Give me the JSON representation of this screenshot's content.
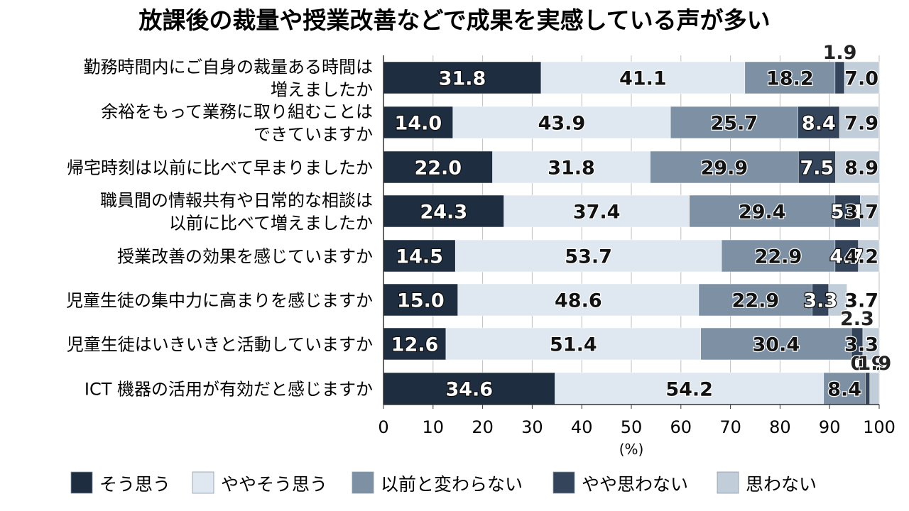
{
  "chart_data": {
    "type": "stacked-bar-horizontal",
    "title": "放課後の裁量や授業改善などで成果を実感している声が多い",
    "unit_label": "(%)",
    "xlim": [
      0,
      100
    ],
    "xticks": [
      "0",
      "10",
      "20",
      "30",
      "40",
      "50",
      "60",
      "70",
      "80",
      "90",
      "100"
    ],
    "categories": [
      [
        "勤務時間内にご自身の裁量ある時間は",
        "増えましたか"
      ],
      [
        "余裕をもって業務に取り組むことは",
        "できていますか"
      ],
      [
        "帰宅時刻は以前に比べて早まりましたか"
      ],
      [
        "職員間の情報共有や日常的な相談は",
        "以前に比べて増えましたか"
      ],
      [
        "授業改善の効果を感じていますか"
      ],
      [
        "児童生徒の集中力に高まりを感じますか"
      ],
      [
        "児童生徒はいきいきと活動していますか"
      ],
      [
        "ICT 機器の活用が有効だと感じますか"
      ]
    ],
    "series": [
      {
        "name": "そう思う",
        "color": "#1f2d40",
        "values": [
          31.8,
          14.0,
          22.0,
          24.3,
          14.5,
          15.0,
          12.6,
          34.6
        ]
      },
      {
        "name": "ややそう思う",
        "color": "#dfe8f1",
        "values": [
          41.1,
          43.9,
          31.8,
          37.4,
          53.7,
          48.6,
          51.4,
          54.2
        ]
      },
      {
        "name": "以前と変わらない",
        "color": "#7d90a4",
        "values": [
          18.2,
          25.7,
          29.9,
          29.4,
          22.9,
          22.9,
          30.4,
          8.4
        ]
      },
      {
        "name": "やや思わない",
        "color": "#33445b",
        "values": [
          1.9,
          8.4,
          7.5,
          5.1,
          4.7,
          3.3,
          2.3,
          0.9
        ]
      },
      {
        "name": "思わない",
        "color": "#c1cdd9",
        "values": [
          7.0,
          7.9,
          8.9,
          3.7,
          4.2,
          3.7,
          3.3,
          1.9
        ]
      }
    ],
    "value_labels": [
      [
        "31.8",
        "41.1",
        "18.2",
        "1.9",
        "7.0"
      ],
      [
        "14.0",
        "43.9",
        "25.7",
        "8.4",
        "7.9"
      ],
      [
        "22.0",
        "31.8",
        "29.9",
        "7.5",
        "8.9"
      ],
      [
        "24.3",
        "37.4",
        "29.4",
        "5.1",
        "3.7"
      ],
      [
        "14.5",
        "53.7",
        "22.9",
        "4.7",
        "4.2"
      ],
      [
        "15.0",
        "48.6",
        "22.9",
        "3.3",
        "3.7"
      ],
      [
        "12.6",
        "51.4",
        "30.4",
        "2.3",
        "3.3"
      ],
      [
        "34.6",
        "54.2",
        "8.4",
        "0.9",
        "1.9"
      ]
    ],
    "legend_position": "bottom"
  }
}
